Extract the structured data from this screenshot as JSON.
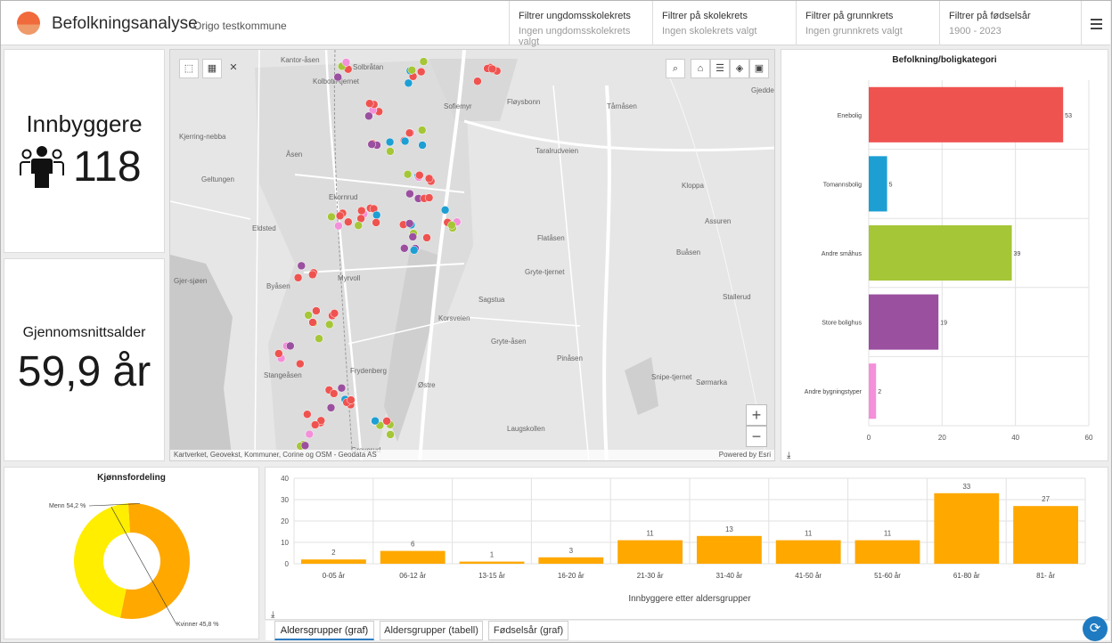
{
  "header": {
    "title": "Befolkningsanalyse",
    "subtitle": "Origo testkommune",
    "filters": [
      {
        "label": "Filtrer ungdomsskolekrets",
        "value": "Ingen ungdomsskolekrets valgt"
      },
      {
        "label": "Filtrer på skolekrets",
        "value": "Ingen skolekrets valgt"
      },
      {
        "label": "Filtrer på grunnkrets",
        "value": "Ingen grunnkrets valgt"
      },
      {
        "label": "Filtrer på fødselsår",
        "value": "1900 - 2023"
      }
    ]
  },
  "indicators": {
    "population_label": "Innbyggere",
    "population_value": "118",
    "avg_age_label": "Gjennomsnittsalder",
    "avg_age_value": "59,9 år"
  },
  "map": {
    "attribution": "Kartverket, Geovekst, Kommuner, Corine og OSM - Geodata AS",
    "powered_by": "Powered by Esri",
    "place_labels": [
      "Kantor-åsen",
      "Solbråtan",
      "Kolbotn-tjernet",
      "Kjerring-nebba",
      "Åsen",
      "Geltungen",
      "Ekornrud",
      "Eldsted",
      "Myrvoll",
      "Byåsen",
      "Gjer-sjøen",
      "Stangeåsen",
      "Frydenberg",
      "Greverud",
      "Østre",
      "Sofiemyr",
      "Fløysbonn",
      "Tårnåsen",
      "Taralrudveien",
      "Kloppa",
      "Assuren",
      "Flatåsen",
      "Buåsen",
      "Stallerud",
      "Gryte-tjernet",
      "Sagstua",
      "Korsveien",
      "Gryte-åsen",
      "Pinåsen",
      "Snipe-tjernet",
      "Sørmarka",
      "Laugskollen",
      "Gjedde"
    ]
  },
  "housing_chart": {
    "title": "Befolkning/boligkategori",
    "download_icon": "download-icon"
  },
  "gender_chart": {
    "title": "Kjønnsfordeling"
  },
  "age_chart": {
    "xlabel": "Innbyggere etter aldersgrupper",
    "download_icon": "download-icon"
  },
  "tabs": [
    {
      "label": "Aldersgrupper (graf)",
      "active": true
    },
    {
      "label": "Aldersgrupper (tabell)",
      "active": false
    },
    {
      "label": "Fødselsår (graf)",
      "active": false
    }
  ],
  "colors": {
    "enebolig": "#ef5350",
    "tomannsbolig": "#1e9fd4",
    "andre_smahus": "#a5c637",
    "store_bolighus": "#9b4f9f",
    "andre_bygningstyper": "#f48fd9",
    "menn": "#ffa800",
    "kvinner": "#ffee00",
    "age_bars": "#ffa800"
  },
  "chart_data": [
    {
      "type": "bar",
      "orientation": "horizontal",
      "title": "Befolkning/boligkategori",
      "categories": [
        "Enebolig",
        "Tomannsbolig",
        "Andre småhus",
        "Store bolighus",
        "Andre bygningstyper"
      ],
      "values": [
        53,
        5,
        39,
        19,
        2
      ],
      "xlim": [
        0,
        60
      ],
      "xticks": [
        0,
        20,
        40,
        60
      ],
      "grid": true
    },
    {
      "type": "pie",
      "title": "Kjønnsfordeling",
      "donut": true,
      "labels": [
        "Menn 54,2 %",
        "Kvinner 45,8 %"
      ],
      "values": [
        54.2,
        45.8
      ]
    },
    {
      "type": "bar",
      "xlabel": "Innbyggere etter aldersgrupper",
      "categories": [
        "0-05 år",
        "06-12 år",
        "13-15 år",
        "16-20 år",
        "21-30 år",
        "31-40 år",
        "41-50 år",
        "51-60 år",
        "61-80 år",
        "81- år"
      ],
      "values": [
        2,
        6,
        1,
        3,
        11,
        13,
        11,
        11,
        33,
        27
      ],
      "ylim": [
        0,
        40
      ],
      "yticks": [
        0,
        10,
        20,
        30,
        40
      ],
      "grid": true
    }
  ]
}
